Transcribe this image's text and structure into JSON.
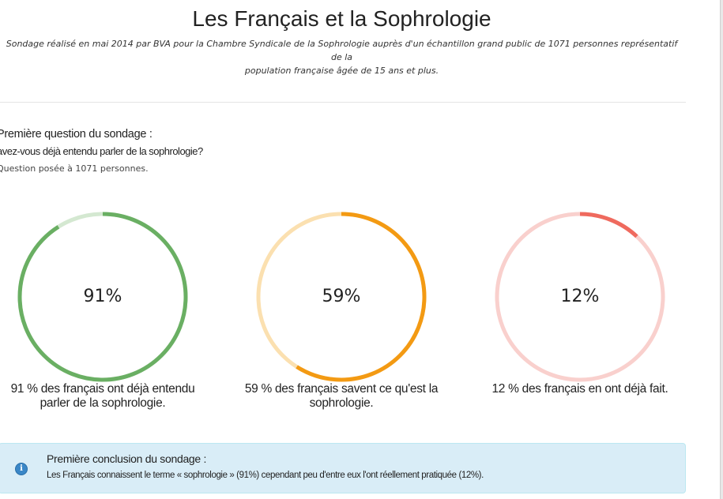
{
  "header": {
    "title": "Les Français et la Sophrologie",
    "subtitle_line1": "Sondage réalisé en mai 2014 par BVA pour la Chambre Syndicale de la Sophrologie auprès d'un échantillon grand public de 1071 personnes représentatif de la",
    "subtitle_line2": "population française âgée de 15 ans et plus."
  },
  "question": {
    "heading": "Première question du sondage :",
    "text": "avez-vous déjà entendu parler de la sophrologie?",
    "note": "Question posée à 1071 personnes."
  },
  "stats": [
    {
      "value": 91,
      "label": "91%",
      "caption_line1": "91 % des français ont déjà entendu",
      "caption_line2": "parler de la sophrologie.",
      "color": "#6aaf63",
      "track_color": "#d4e8d1"
    },
    {
      "value": 59,
      "label": "59%",
      "caption_line1": "59 % des français savent ce qu'est la",
      "caption_line2": "sophrologie.",
      "color": "#f39a13",
      "track_color": "#fbe0b0"
    },
    {
      "value": 12,
      "label": "12%",
      "caption_line1": "12 % des français en ont déjà fait.",
      "caption_line2": "",
      "color": "#ef6a5e",
      "track_color": "#f9d0cd"
    }
  ],
  "conclusion": {
    "icon": "info-icon",
    "heading": "Première conclusion du sondage :",
    "text": "Les Français connaissent le terme « sophrologie » (91%) cependant peu d'entre eux l'ont réellement pratiquée (12%)."
  }
}
